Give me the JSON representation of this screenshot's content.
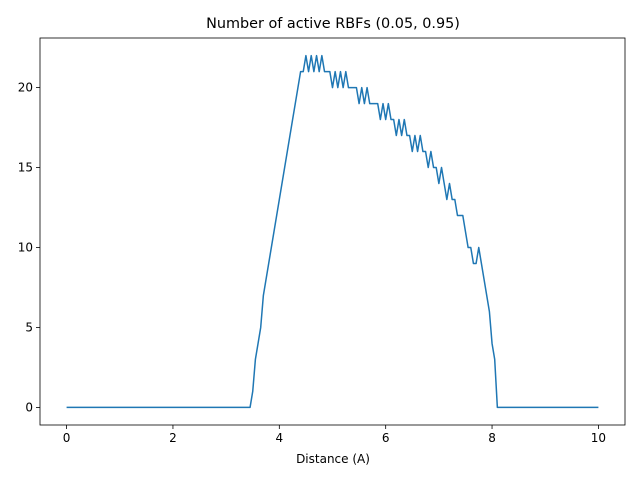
{
  "chart_data": {
    "type": "line",
    "title": "Number of active RBFs (0.05, 0.95)",
    "xlabel": "Distance (A)",
    "color": "#1f77b4",
    "x": [
      0,
      3.45,
      3.5,
      3.55,
      3.6,
      3.65,
      3.7,
      3.75,
      3.8,
      3.85,
      3.9,
      3.95,
      4.0,
      4.05,
      4.1,
      4.15,
      4.2,
      4.25,
      4.3,
      4.35,
      4.4,
      4.45,
      4.5,
      4.55,
      4.6,
      4.65,
      4.7,
      4.75,
      4.8,
      4.85,
      4.9,
      4.95,
      5.0,
      5.05,
      5.1,
      5.15,
      5.2,
      5.25,
      5.3,
      5.35,
      5.4,
      5.45,
      5.5,
      5.55,
      5.6,
      5.65,
      5.7,
      5.75,
      5.8,
      5.85,
      5.9,
      5.95,
      6.0,
      6.05,
      6.1,
      6.15,
      6.2,
      6.25,
      6.3,
      6.35,
      6.4,
      6.45,
      6.5,
      6.55,
      6.6,
      6.65,
      6.7,
      6.75,
      6.8,
      6.85,
      6.9,
      6.95,
      7.0,
      7.05,
      7.1,
      7.15,
      7.2,
      7.25,
      7.3,
      7.35,
      7.4,
      7.45,
      7.5,
      7.55,
      7.6,
      7.65,
      7.7,
      7.75,
      7.8,
      7.85,
      7.9,
      7.95,
      8.0,
      8.05,
      8.1,
      10
    ],
    "values": [
      0,
      0,
      1,
      3,
      4,
      5,
      7,
      8,
      9,
      10,
      11,
      12,
      13,
      14,
      15,
      16,
      17,
      18,
      19,
      20,
      21,
      21,
      22,
      21,
      22,
      21,
      22,
      21,
      22,
      21,
      21,
      21,
      20,
      21,
      20,
      21,
      20,
      21,
      20,
      20,
      20,
      20,
      19,
      20,
      19,
      20,
      19,
      19,
      19,
      19,
      18,
      19,
      18,
      19,
      18,
      18,
      17,
      18,
      17,
      18,
      17,
      17,
      16,
      17,
      16,
      17,
      16,
      16,
      15,
      16,
      15,
      15,
      14,
      15,
      14,
      13,
      14,
      13,
      13,
      12,
      12,
      12,
      11,
      10,
      10,
      9,
      9,
      10,
      9,
      8,
      7,
      6,
      4,
      3,
      0,
      0
    ],
    "xlim": [
      -0.5,
      10.5
    ],
    "ylim": [
      -1.1,
      23.1
    ],
    "xticks": [
      0,
      2,
      4,
      6,
      8,
      10
    ],
    "yticks": [
      0,
      5,
      10,
      15,
      20
    ]
  }
}
